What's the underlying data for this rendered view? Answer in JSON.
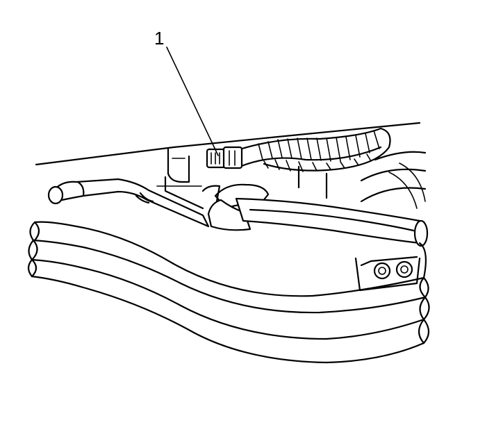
{
  "callouts": [
    {
      "number": "1"
    }
  ]
}
